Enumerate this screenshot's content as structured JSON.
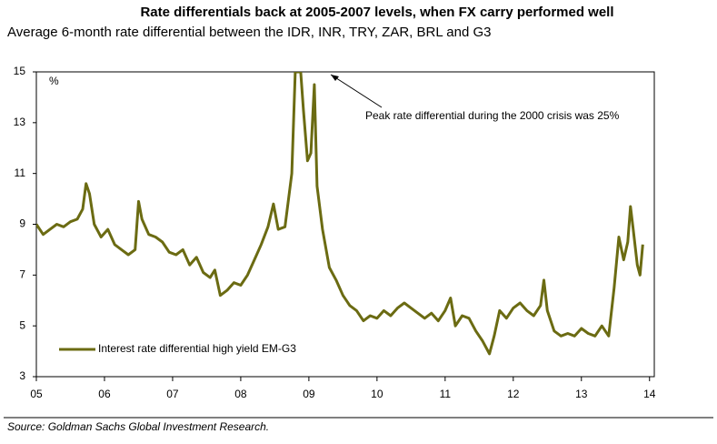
{
  "chart_data": {
    "type": "line",
    "title": "Rate differentials back at 2005-2007 levels, when FX carry performed well",
    "subtitle": "Average 6-month rate differential between the IDR, INR, TRY, ZAR, BRL and G3",
    "y_unit": "%",
    "annotation": "Peak rate differential during the 2000 crisis was 25%",
    "source": "Source: Goldman Sachs Global Investment Research.",
    "x": [
      2005.0,
      2005.1,
      2005.2,
      2005.3,
      2005.4,
      2005.5,
      2005.6,
      2005.68,
      2005.73,
      2005.78,
      2005.85,
      2005.95,
      2006.05,
      2006.15,
      2006.25,
      2006.35,
      2006.45,
      2006.5,
      2006.55,
      2006.65,
      2006.75,
      2006.85,
      2006.95,
      2007.05,
      2007.15,
      2007.25,
      2007.35,
      2007.45,
      2007.55,
      2007.62,
      2007.7,
      2007.8,
      2007.9,
      2008.0,
      2008.1,
      2008.2,
      2008.3,
      2008.4,
      2008.48,
      2008.55,
      2008.65,
      2008.75,
      2008.8,
      2008.88,
      2008.92,
      2008.98,
      2009.03,
      2009.08,
      2009.12,
      2009.2,
      2009.3,
      2009.4,
      2009.5,
      2009.6,
      2009.7,
      2009.8,
      2009.9,
      2010.0,
      2010.1,
      2010.2,
      2010.3,
      2010.4,
      2010.5,
      2010.6,
      2010.7,
      2010.8,
      2010.9,
      2011.0,
      2011.08,
      2011.15,
      2011.25,
      2011.35,
      2011.45,
      2011.55,
      2011.65,
      2011.72,
      2011.8,
      2011.9,
      2012.0,
      2012.1,
      2012.2,
      2012.3,
      2012.4,
      2012.45,
      2012.5,
      2012.6,
      2012.7,
      2012.8,
      2012.9,
      2013.0,
      2013.1,
      2013.2,
      2013.3,
      2013.4,
      2013.48,
      2013.55,
      2013.62,
      2013.68,
      2013.72,
      2013.76,
      2013.82,
      2013.86,
      2013.9
    ],
    "series": [
      {
        "name": "Interest rate differential high yield EM-G3",
        "color": "#6b6b12",
        "values": [
          9.0,
          8.6,
          8.8,
          9.0,
          8.9,
          9.1,
          9.2,
          9.6,
          10.6,
          10.2,
          9.0,
          8.5,
          8.8,
          8.2,
          8.0,
          7.8,
          8.0,
          9.9,
          9.2,
          8.6,
          8.5,
          8.3,
          7.9,
          7.8,
          8.0,
          7.4,
          7.7,
          7.1,
          6.9,
          7.2,
          6.2,
          6.4,
          6.7,
          6.6,
          7.0,
          7.6,
          8.2,
          8.9,
          9.8,
          8.8,
          8.9,
          11.0,
          15,
          15,
          13.5,
          11.5,
          11.8,
          14.5,
          10.5,
          8.8,
          7.3,
          6.8,
          6.2,
          5.8,
          5.6,
          5.2,
          5.4,
          5.3,
          5.6,
          5.4,
          5.7,
          5.9,
          5.7,
          5.5,
          5.3,
          5.5,
          5.2,
          5.6,
          6.1,
          5.0,
          5.4,
          5.3,
          4.8,
          4.4,
          3.9,
          4.6,
          5.6,
          5.3,
          5.7,
          5.9,
          5.6,
          5.4,
          5.8,
          6.8,
          5.6,
          4.8,
          4.6,
          4.7,
          4.6,
          4.9,
          4.7,
          4.6,
          5.0,
          4.6,
          6.5,
          8.5,
          7.6,
          8.3,
          9.7,
          8.8,
          7.4,
          7.0,
          8.2
        ]
      }
    ],
    "xlim": [
      2005,
      2014.07
    ],
    "xticks": [
      {
        "value": 2005,
        "label": "05"
      },
      {
        "value": 2006,
        "label": "06"
      },
      {
        "value": 2007,
        "label": "07"
      },
      {
        "value": 2008,
        "label": "08"
      },
      {
        "value": 2009,
        "label": "09"
      },
      {
        "value": 2010,
        "label": "10"
      },
      {
        "value": 2011,
        "label": "11"
      },
      {
        "value": 2012,
        "label": "12"
      },
      {
        "value": 2013,
        "label": "13"
      },
      {
        "value": 2014,
        "label": "14"
      }
    ],
    "ylim": [
      3,
      15
    ],
    "yticks": [
      3,
      5,
      7,
      9,
      11,
      13,
      15
    ],
    "grid": false
  }
}
